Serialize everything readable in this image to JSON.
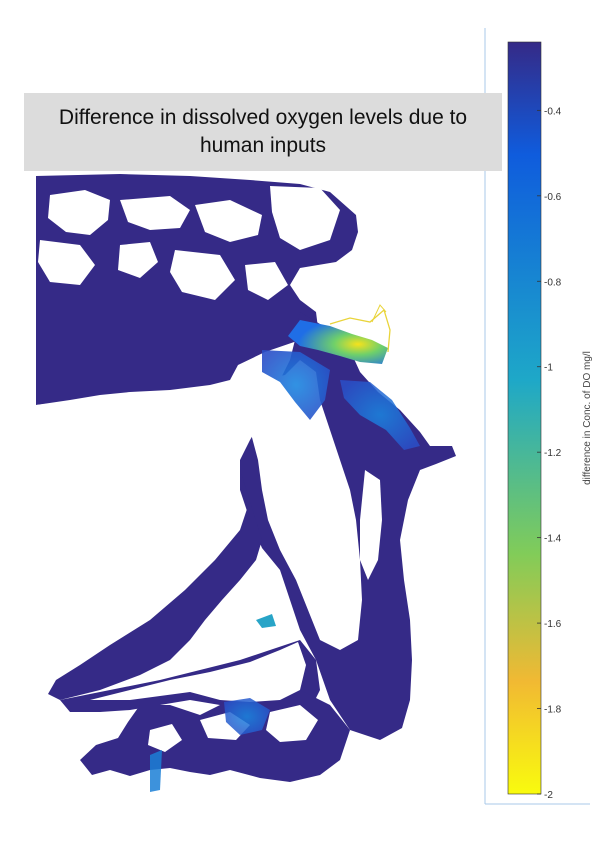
{
  "title": {
    "line1": "Difference in dissolved oxygen levels due to",
    "line2": "human inputs"
  },
  "colorbar": {
    "label": "difference in Conc. of DO mg/l",
    "min": -2,
    "max": -0.24,
    "ticks": [
      "-0.4",
      "-0.6",
      "-0.8",
      "-1",
      "-1.2",
      "-1.4",
      "-1.6",
      "-1.8",
      "-2"
    ],
    "tick_values": [
      -0.4,
      -0.6,
      -0.8,
      -1,
      -1.2,
      -1.4,
      -1.6,
      -1.8,
      -2
    ],
    "colors": {
      "top": "#352a87",
      "upper": "#0f5cdd",
      "middle": "#1ea8c8",
      "lower": "#81cc59",
      "lower2": "#f1b933",
      "bottom": "#f9fb0e"
    }
  },
  "map": {
    "water_color": "#352a87",
    "land_color": "#ffffff",
    "hotspot_color": "#f0d020"
  }
}
